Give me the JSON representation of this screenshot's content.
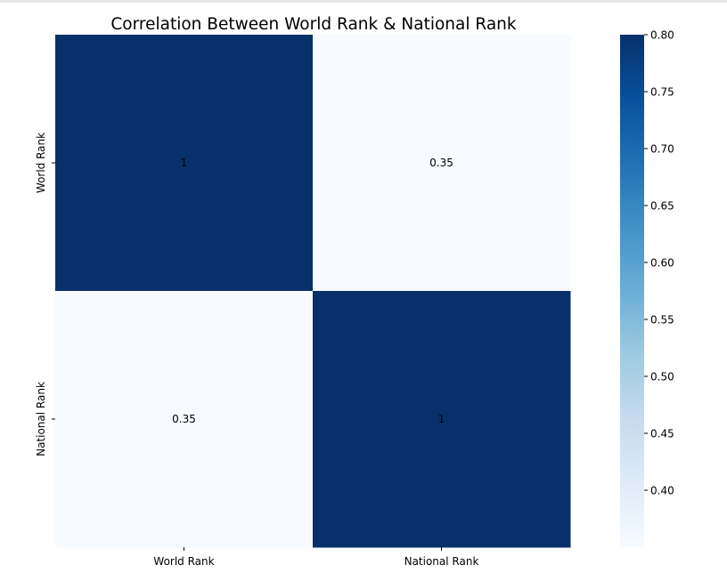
{
  "chart_data": {
    "type": "heatmap",
    "title": "Correlation Between World Rank & National Rank",
    "row_labels": [
      "World Rank",
      "National Rank"
    ],
    "col_labels": [
      "World Rank",
      "National Rank"
    ],
    "values": [
      [
        1,
        0.35
      ],
      [
        0.35,
        1
      ]
    ],
    "cell_annotations": [
      [
        "1",
        "0.35"
      ],
      [
        "0.35",
        "1"
      ]
    ],
    "colormap": "Blues",
    "colorbar": {
      "vmin": 0.35,
      "vmax": 0.8,
      "ticks": [
        0.4,
        0.45,
        0.5,
        0.55,
        0.6,
        0.65,
        0.7,
        0.75,
        0.8
      ],
      "tick_labels": [
        "0.40",
        "0.45",
        "0.50",
        "0.55",
        "0.60",
        "0.65",
        "0.70",
        "0.75",
        "0.80"
      ]
    },
    "colors": {
      "low": "#f7fbff",
      "high": "#08306b"
    }
  }
}
